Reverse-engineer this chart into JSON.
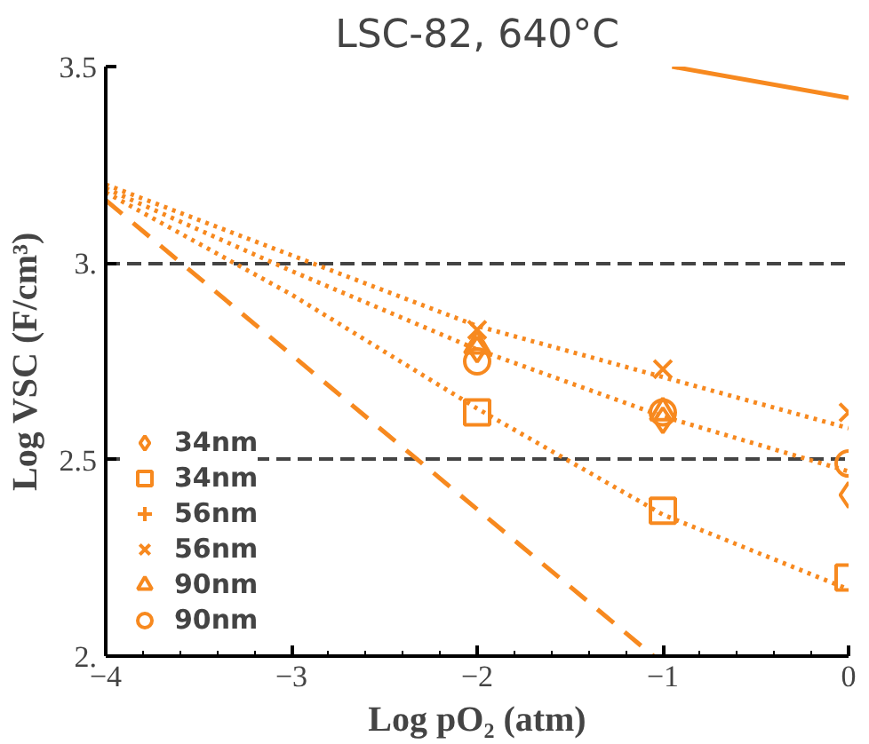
{
  "chart_data": {
    "type": "scatter",
    "title": "LSC-82, 640°C",
    "xlabel": "Log pO₂ (atm)",
    "ylabel": "Log VSC (F/cm³)",
    "xlim": [
      -4,
      0
    ],
    "ylim": [
      2,
      3.5
    ],
    "xticks": [
      {
        "value": -4,
        "label": "−4"
      },
      {
        "value": -3,
        "label": "−3"
      },
      {
        "value": -2,
        "label": "−2"
      },
      {
        "value": -1,
        "label": "−1"
      },
      {
        "value": 0,
        "label": "0"
      },
      {
        "value": -3.8,
        "label": null
      },
      {
        "value": -3.6,
        "label": null
      },
      {
        "value": -3.4,
        "label": null
      },
      {
        "value": -3.2,
        "label": null
      },
      {
        "value": -2.8,
        "label": null
      },
      {
        "value": -2.6,
        "label": null
      },
      {
        "value": -2.4,
        "label": null
      },
      {
        "value": -2.2,
        "label": null
      },
      {
        "value": -1.8,
        "label": null
      },
      {
        "value": -1.6,
        "label": null
      },
      {
        "value": -1.4,
        "label": null
      },
      {
        "value": -1.2,
        "label": null
      },
      {
        "value": -0.8,
        "label": null
      },
      {
        "value": -0.6,
        "label": null
      },
      {
        "value": -0.4,
        "label": null
      },
      {
        "value": -0.2,
        "label": null
      }
    ],
    "yticks": [
      {
        "value": 2,
        "label": "2."
      },
      {
        "value": 2.5,
        "label": "2.5"
      },
      {
        "value": 3,
        "label": "3."
      },
      {
        "value": 3.5,
        "label": "3.5"
      }
    ],
    "grid": "y",
    "legend": "bottom left",
    "x": [
      -2,
      -1,
      0
    ],
    "series": [
      {
        "name": "34nm",
        "color": "#f7891f",
        "marker": "diamond",
        "values": [
          2.78,
          2.6,
          2.41
        ]
      },
      {
        "name": "34nm",
        "color": "#f7891f",
        "marker": "square",
        "values": [
          2.62,
          2.37,
          2.2
        ]
      },
      {
        "name": "56nm",
        "color": "#f7891f",
        "marker": "cross",
        "values": [
          null,
          null,
          null
        ]
      },
      {
        "name": "56nm",
        "color": "#f7891f",
        "marker": "x",
        "values": [
          2.83,
          2.73,
          2.62
        ]
      },
      {
        "name": "90nm",
        "color": "#f7891f",
        "marker": "triangle",
        "values": [
          2.79,
          2.62,
          null
        ]
      },
      {
        "name": "90nm",
        "color": "#f7891f",
        "marker": "circle",
        "values": [
          2.75,
          2.62,
          2.49
        ]
      },
      {
        "type": "line",
        "color": "#f7891f",
        "line_style": "dotted",
        "x": [
          -4,
          -3,
          -2,
          -1,
          0
        ],
        "values": [
          3.2,
          3.02,
          2.84,
          2.71,
          2.58
        ]
      },
      {
        "type": "line",
        "color": "#f7891f",
        "line_style": "dotted",
        "x": [
          -4,
          -3,
          -2,
          -1,
          0
        ],
        "values": [
          3.19,
          2.98,
          2.78,
          2.61,
          2.47
        ]
      },
      {
        "type": "line",
        "color": "#f7891f",
        "line_style": "dotted",
        "x": [
          -4,
          -3,
          -2,
          -1,
          0
        ],
        "values": [
          3.18,
          2.92,
          2.63,
          2.36,
          2.17
        ]
      },
      {
        "type": "line",
        "color": "#f7891f",
        "line_style": "dashed",
        "x": [
          -4,
          -1.05
        ],
        "values": [
          3.16,
          2.0
        ]
      },
      {
        "type": "line",
        "color": "#f7891f",
        "line_style": "solid",
        "x": [
          -0.95,
          0
        ],
        "values": [
          3.5,
          3.42
        ]
      }
    ]
  }
}
